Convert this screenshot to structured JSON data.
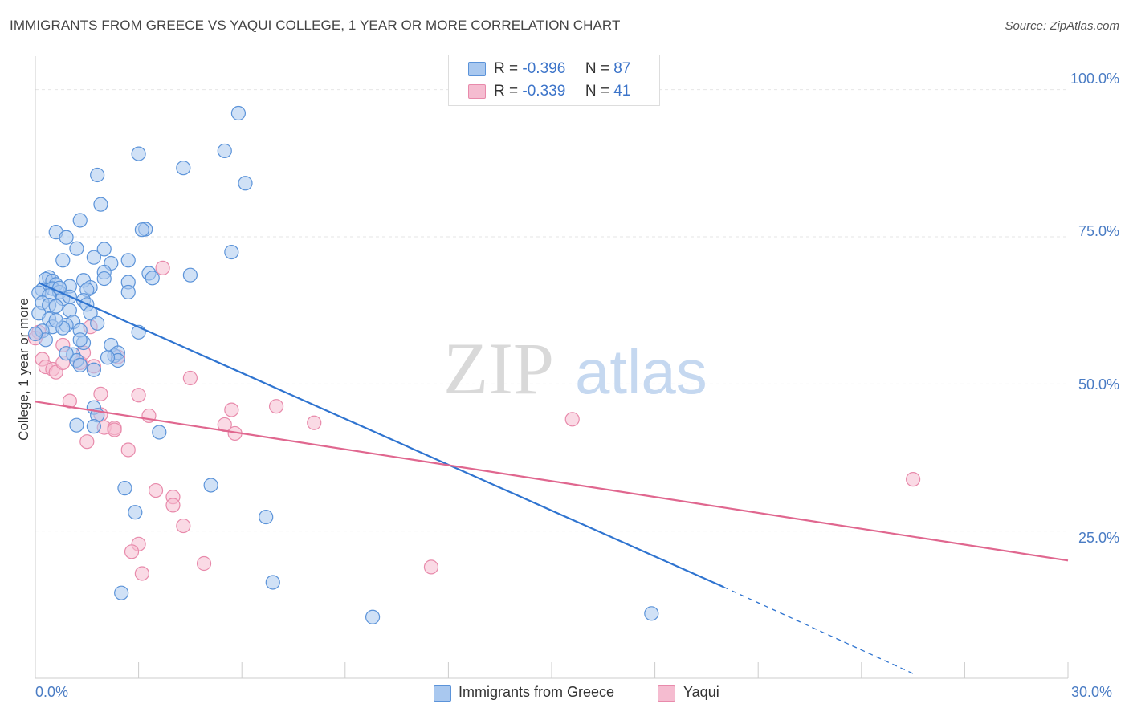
{
  "header": {
    "title": "IMMIGRANTS FROM GREECE VS YAQUI COLLEGE, 1 YEAR OR MORE CORRELATION CHART",
    "source": "Source: ZipAtlas.com"
  },
  "watermark": {
    "zip": "ZIP",
    "atlas": "atlas"
  },
  "legend": {
    "rows": [
      {
        "r_label": "R =",
        "r_value": "-0.396",
        "n_label": "N =",
        "n_value": "87"
      },
      {
        "r_label": "R =",
        "r_value": "-0.339",
        "n_label": "N =",
        "n_value": "41"
      }
    ]
  },
  "bottom_legend": {
    "items": [
      "Immigrants from Greece",
      "Yaqui"
    ]
  },
  "colors": {
    "blue_fill": "#a9c8ef",
    "blue_stroke": "#5b93d9",
    "blue_line": "#2f74d0",
    "pink_fill": "#f5bcd0",
    "pink_stroke": "#e88aab",
    "pink_line": "#e0678f",
    "grid": "#e6e6e6",
    "tick_text": "#4a7cc4"
  },
  "chart_data": {
    "type": "scatter",
    "title": "IMMIGRANTS FROM GREECE VS YAQUI COLLEGE, 1 YEAR OR MORE CORRELATION CHART",
    "xlabel": "",
    "ylabel": "College, 1 year or more",
    "xlim": [
      0,
      30
    ],
    "ylim": [
      0,
      105
    ],
    "x_tick_labels": [
      "0.0%",
      "30.0%"
    ],
    "y_ticks": [
      25,
      50,
      75,
      100
    ],
    "y_tick_labels": [
      "25.0%",
      "50.0%",
      "75.0%",
      "100.0%"
    ],
    "grid": "horizontal dashed",
    "legend_placement": "top-center",
    "series": [
      {
        "name": "Immigrants from Greece",
        "r": -0.396,
        "n": 87,
        "trend": {
          "x": [
            0.1,
            20.0
          ],
          "y": [
            67.2,
            15.5
          ],
          "dashed_extension_to": [
            25.5,
            0.8
          ]
        },
        "points": [
          [
            5.9,
            96.0
          ],
          [
            5.5,
            89.6
          ],
          [
            3.0,
            89.1
          ],
          [
            4.3,
            86.7
          ],
          [
            6.1,
            84.1
          ],
          [
            1.8,
            85.5
          ],
          [
            1.9,
            80.5
          ],
          [
            1.3,
            77.8
          ],
          [
            0.6,
            75.8
          ],
          [
            0.9,
            74.9
          ],
          [
            3.2,
            76.3
          ],
          [
            3.1,
            76.2
          ],
          [
            1.2,
            73.0
          ],
          [
            2.0,
            72.9
          ],
          [
            5.7,
            72.4
          ],
          [
            0.8,
            71.0
          ],
          [
            1.7,
            71.5
          ],
          [
            2.2,
            70.5
          ],
          [
            2.7,
            71.0
          ],
          [
            2.0,
            69.0
          ],
          [
            3.3,
            68.8
          ],
          [
            3.4,
            68.0
          ],
          [
            4.5,
            68.5
          ],
          [
            0.4,
            68.1
          ],
          [
            0.3,
            67.8
          ],
          [
            0.5,
            67.5
          ],
          [
            1.4,
            67.6
          ],
          [
            2.0,
            67.9
          ],
          [
            2.7,
            67.3
          ],
          [
            0.6,
            66.9
          ],
          [
            1.0,
            66.6
          ],
          [
            1.6,
            66.4
          ],
          [
            0.2,
            66.0
          ],
          [
            0.5,
            66.2
          ],
          [
            0.7,
            65.6
          ],
          [
            1.5,
            66.0
          ],
          [
            2.7,
            65.6
          ],
          [
            0.1,
            65.5
          ],
          [
            0.4,
            65.0
          ],
          [
            0.8,
            64.5
          ],
          [
            1.4,
            64.2
          ],
          [
            0.2,
            63.8
          ],
          [
            0.4,
            63.4
          ],
          [
            0.6,
            63.2
          ],
          [
            1.5,
            63.5
          ],
          [
            1.0,
            62.5
          ],
          [
            0.1,
            62.0
          ],
          [
            1.6,
            62.0
          ],
          [
            0.4,
            61.0
          ],
          [
            1.1,
            60.5
          ],
          [
            1.8,
            60.3
          ],
          [
            0.9,
            60.0
          ],
          [
            0.5,
            59.7
          ],
          [
            0.2,
            59.0
          ],
          [
            0.8,
            59.5
          ],
          [
            1.3,
            59.1
          ],
          [
            3.0,
            58.8
          ],
          [
            0.3,
            57.5
          ],
          [
            1.4,
            57.0
          ],
          [
            2.2,
            56.6
          ],
          [
            2.3,
            54.8
          ],
          [
            2.4,
            55.3
          ],
          [
            1.1,
            55.0
          ],
          [
            1.2,
            54.0
          ],
          [
            2.4,
            54.0
          ],
          [
            1.3,
            53.2
          ],
          [
            1.7,
            52.4
          ],
          [
            1.7,
            46.0
          ],
          [
            1.8,
            44.7
          ],
          [
            1.2,
            43.0
          ],
          [
            1.7,
            42.8
          ],
          [
            3.6,
            41.8
          ],
          [
            2.6,
            32.3
          ],
          [
            5.1,
            32.8
          ],
          [
            2.9,
            28.2
          ],
          [
            6.7,
            27.4
          ],
          [
            2.5,
            14.5
          ],
          [
            6.9,
            16.3
          ],
          [
            9.8,
            10.4
          ],
          [
            17.9,
            11.0
          ],
          [
            0.0,
            58.5
          ],
          [
            0.7,
            66.3
          ],
          [
            1.0,
            64.8
          ],
          [
            0.6,
            60.8
          ],
          [
            2.1,
            54.5
          ],
          [
            1.3,
            57.5
          ],
          [
            0.9,
            55.2
          ]
        ]
      },
      {
        "name": "Yaqui",
        "r": -0.339,
        "n": 41,
        "trend": {
          "x": [
            0.0,
            30.0
          ],
          "y": [
            47.0,
            20.0
          ]
        },
        "points": [
          [
            0.1,
            58.8
          ],
          [
            0.0,
            57.8
          ],
          [
            0.2,
            54.2
          ],
          [
            0.3,
            52.9
          ],
          [
            0.5,
            52.5
          ],
          [
            0.6,
            52.0
          ],
          [
            0.8,
            56.6
          ],
          [
            0.8,
            53.6
          ],
          [
            1.3,
            53.6
          ],
          [
            1.4,
            55.3
          ],
          [
            1.7,
            53.0
          ],
          [
            1.6,
            59.7
          ],
          [
            2.4,
            54.6
          ],
          [
            1.0,
            47.1
          ],
          [
            1.9,
            48.3
          ],
          [
            3.0,
            48.1
          ],
          [
            4.5,
            51.0
          ],
          [
            3.7,
            69.7
          ],
          [
            1.9,
            44.8
          ],
          [
            3.3,
            44.6
          ],
          [
            2.0,
            42.6
          ],
          [
            2.3,
            42.5
          ],
          [
            2.3,
            42.2
          ],
          [
            1.5,
            40.2
          ],
          [
            2.7,
            38.8
          ],
          [
            5.7,
            45.6
          ],
          [
            7.0,
            46.2
          ],
          [
            5.5,
            43.1
          ],
          [
            5.8,
            41.6
          ],
          [
            8.1,
            43.4
          ],
          [
            15.6,
            44.0
          ],
          [
            25.5,
            33.8
          ],
          [
            3.5,
            31.9
          ],
          [
            4.0,
            30.8
          ],
          [
            4.0,
            29.4
          ],
          [
            4.3,
            25.9
          ],
          [
            3.0,
            22.8
          ],
          [
            2.8,
            21.5
          ],
          [
            3.1,
            17.8
          ],
          [
            4.9,
            19.5
          ],
          [
            11.5,
            18.9
          ]
        ]
      }
    ]
  }
}
